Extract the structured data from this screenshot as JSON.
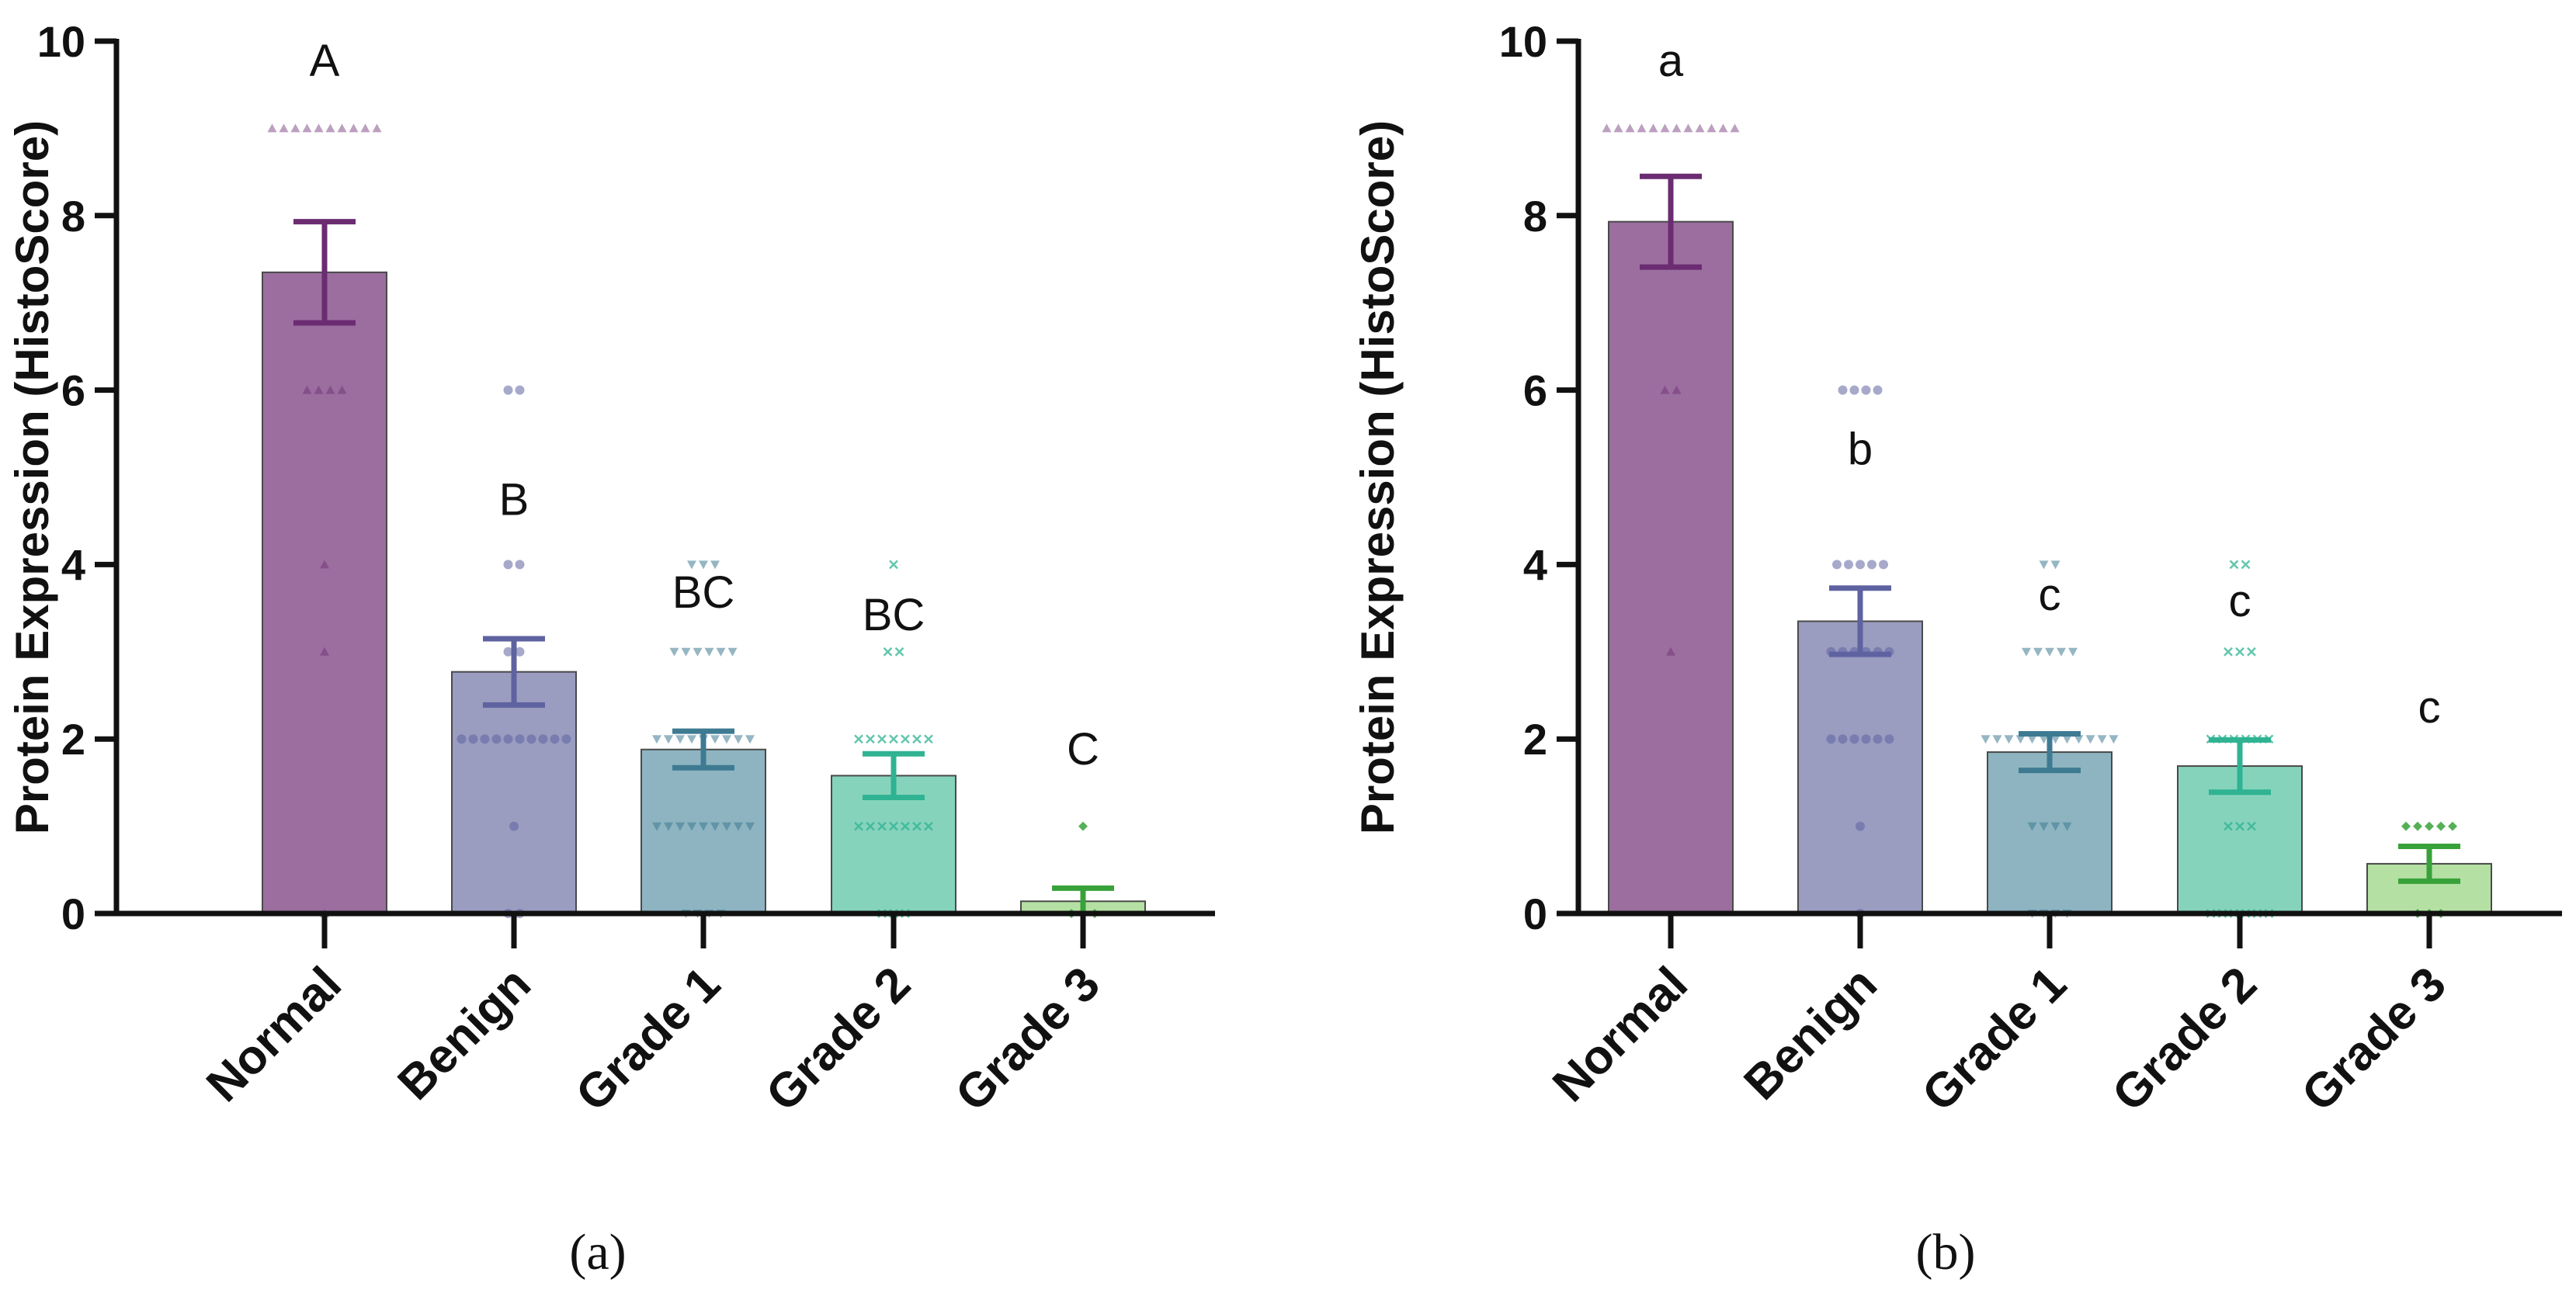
{
  "colors": {
    "Normal": "#9B6E9F",
    "Benign": "#9A9CC0",
    "Grade 1": "#8DB4C0",
    "Grade 2": "#86D3BC",
    "Grade 3": "#B5E0A3",
    "Normal_dark": "#6B2C72",
    "Benign_dark": "#5E62A0",
    "Grade 1_dark": "#3E7A92",
    "Grade 2_dark": "#2FB392",
    "Grade 3_dark": "#38A23A",
    "axis": "#111111"
  },
  "chart_data": [
    {
      "type": "bar",
      "panel_label": "(a)",
      "ylabel": "Protein Expression (HistoScore)",
      "xlabel": "",
      "ylim": [
        0,
        10
      ],
      "yticks": [
        "0",
        "2",
        "4",
        "6",
        "8",
        "10"
      ],
      "categories": [
        "Normal",
        "Benign",
        "Grade 1",
        "Grade 2",
        "Grade 3"
      ],
      "values": [
        7.35,
        2.77,
        1.88,
        1.58,
        0.14
      ],
      "errors": [
        0.58,
        0.38,
        0.21,
        0.25,
        0.15
      ],
      "significance": [
        "A",
        "B",
        "BC",
        "BC",
        "C"
      ],
      "points": [
        [
          9,
          9,
          9,
          9,
          9,
          9,
          9,
          9,
          9,
          9,
          6,
          6,
          6,
          6,
          4,
          3,
          0
        ],
        [
          6,
          6,
          4,
          4,
          3,
          3,
          2,
          2,
          2,
          2,
          2,
          2,
          2,
          2,
          2,
          2,
          1,
          0,
          0
        ],
        [
          4,
          4,
          4,
          3,
          3,
          3,
          3,
          3,
          3,
          2,
          2,
          2,
          2,
          2,
          2,
          2,
          2,
          2,
          1,
          1,
          1,
          1,
          1,
          1,
          1,
          1,
          1,
          0,
          0,
          0,
          0
        ],
        [
          4,
          3,
          3,
          2,
          2,
          2,
          2,
          2,
          2,
          2,
          1,
          1,
          1,
          1,
          1,
          1,
          1,
          0,
          0,
          0
        ],
        [
          1,
          0,
          0,
          0
        ]
      ]
    },
    {
      "type": "bar",
      "panel_label": "(b)",
      "ylabel": "Protein Expression (HistoScore)",
      "xlabel": "",
      "ylim": [
        0,
        10
      ],
      "yticks": [
        "0",
        "2",
        "4",
        "6",
        "8",
        "10"
      ],
      "categories": [
        "Normal",
        "Benign",
        "Grade 1",
        "Grade 2",
        "Grade 3"
      ],
      "values": [
        7.93,
        3.35,
        1.85,
        1.69,
        0.57
      ],
      "errors": [
        0.52,
        0.38,
        0.21,
        0.3,
        0.2
      ],
      "significance": [
        "a",
        "b",
        "c",
        "c",
        "c"
      ],
      "points": [
        [
          9,
          9,
          9,
          9,
          9,
          9,
          9,
          9,
          9,
          9,
          9,
          9,
          6,
          6,
          3
        ],
        [
          6,
          6,
          6,
          6,
          4,
          4,
          4,
          4,
          4,
          3,
          3,
          3,
          3,
          3,
          3,
          2,
          2,
          2,
          2,
          2,
          2,
          1,
          0
        ],
        [
          4,
          4,
          3,
          3,
          3,
          3,
          3,
          2,
          2,
          2,
          2,
          2,
          2,
          2,
          2,
          2,
          2,
          2,
          2,
          1,
          1,
          1,
          1,
          0,
          0,
          0,
          0
        ],
        [
          4,
          4,
          3,
          3,
          3,
          2,
          2,
          2,
          2,
          2,
          2,
          1,
          1,
          1,
          0,
          0,
          0,
          0,
          0,
          0
        ],
        [
          1,
          1,
          1,
          1,
          1,
          0,
          0,
          0
        ]
      ]
    }
  ]
}
